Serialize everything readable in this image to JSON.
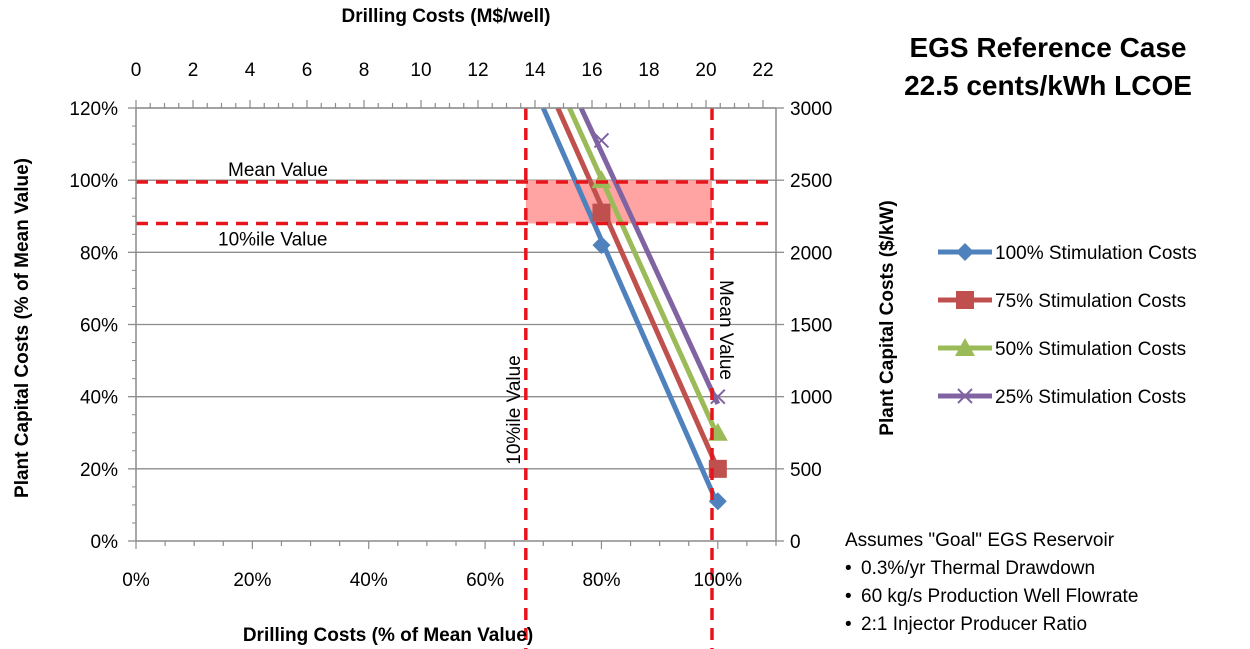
{
  "chart_data": {
    "type": "line",
    "title_lines": [
      "EGS Reference Case",
      "22.5 cents/kWh LCOE"
    ],
    "x_bottom_label": "Drilling Costs (% of Mean Value)",
    "x_top_label": "Drilling Costs (M$/well)",
    "y_left_label": "Plant Capital Costs (% of Mean Value)",
    "y_right_label": "Plant Capital Costs ($/kW)",
    "x_bottom_ticks": [
      "0%",
      "20%",
      "40%",
      "60%",
      "80%",
      "100%"
    ],
    "x_top_ticks": [
      "0",
      "2",
      "4",
      "6",
      "8",
      "10",
      "12",
      "14",
      "16",
      "18",
      "20",
      "22"
    ],
    "y_left_ticks": [
      "0%",
      "20%",
      "40%",
      "60%",
      "80%",
      "100%",
      "120%"
    ],
    "y_right_ticks": [
      "0",
      "500",
      "1000",
      "1500",
      "2000",
      "2500",
      "3000"
    ],
    "xlim": [
      0,
      1.1
    ],
    "ylim": [
      0,
      1.2
    ],
    "grid": "horizontal",
    "legend_position": "right",
    "series": [
      {
        "name": "100% Stimulation Costs",
        "color": "#4F81BD",
        "marker": "diamond",
        "x": [
          0.7,
          1.0
        ],
        "y": [
          1.2,
          0.1
        ],
        "markers_x": [
          0.8,
          1.0
        ],
        "markers_y": [
          0.82,
          0.11
        ]
      },
      {
        "name": "75% Stimulation Costs",
        "color": "#C0504D",
        "marker": "square",
        "x": [
          0.725,
          1.0
        ],
        "y": [
          1.2,
          0.2
        ],
        "markers_x": [
          0.8,
          1.0
        ],
        "markers_y": [
          0.91,
          0.2
        ]
      },
      {
        "name": "50% Stimulation Costs",
        "color": "#9BBB59",
        "marker": "triangle",
        "x": [
          0.745,
          1.0
        ],
        "y": [
          1.2,
          0.29
        ],
        "markers_x": [
          0.8,
          1.0
        ],
        "markers_y": [
          1.0,
          0.3
        ]
      },
      {
        "name": "25% Stimulation Costs",
        "color": "#8064A2",
        "marker": "x",
        "x": [
          0.765,
          1.0
        ],
        "y": [
          1.2,
          0.38
        ],
        "markers_x": [
          0.8,
          1.0
        ],
        "markers_y": [
          1.11,
          0.4
        ]
      }
    ],
    "reference_lines": [
      {
        "orientation": "horizontal",
        "value": 0.995,
        "label": "Mean Value"
      },
      {
        "orientation": "horizontal",
        "value": 0.88,
        "label": "10%ile Value"
      },
      {
        "orientation": "vertical",
        "value": 0.67,
        "label": "10%ile Value"
      },
      {
        "orientation": "vertical",
        "value": 0.99,
        "label": "Mean Value"
      }
    ],
    "shaded_region": {
      "x": [
        0.67,
        0.99
      ],
      "y": [
        0.88,
        1.0
      ],
      "color": "#FF9999"
    },
    "reference_color": "#E8141B"
  },
  "notes": {
    "heading": "Assumes \"Goal\" EGS Reservoir",
    "items": [
      "0.3%/yr Thermal Drawdown",
      "60 kg/s Production Well Flowrate",
      "2:1 Injector Producer Ratio"
    ]
  }
}
